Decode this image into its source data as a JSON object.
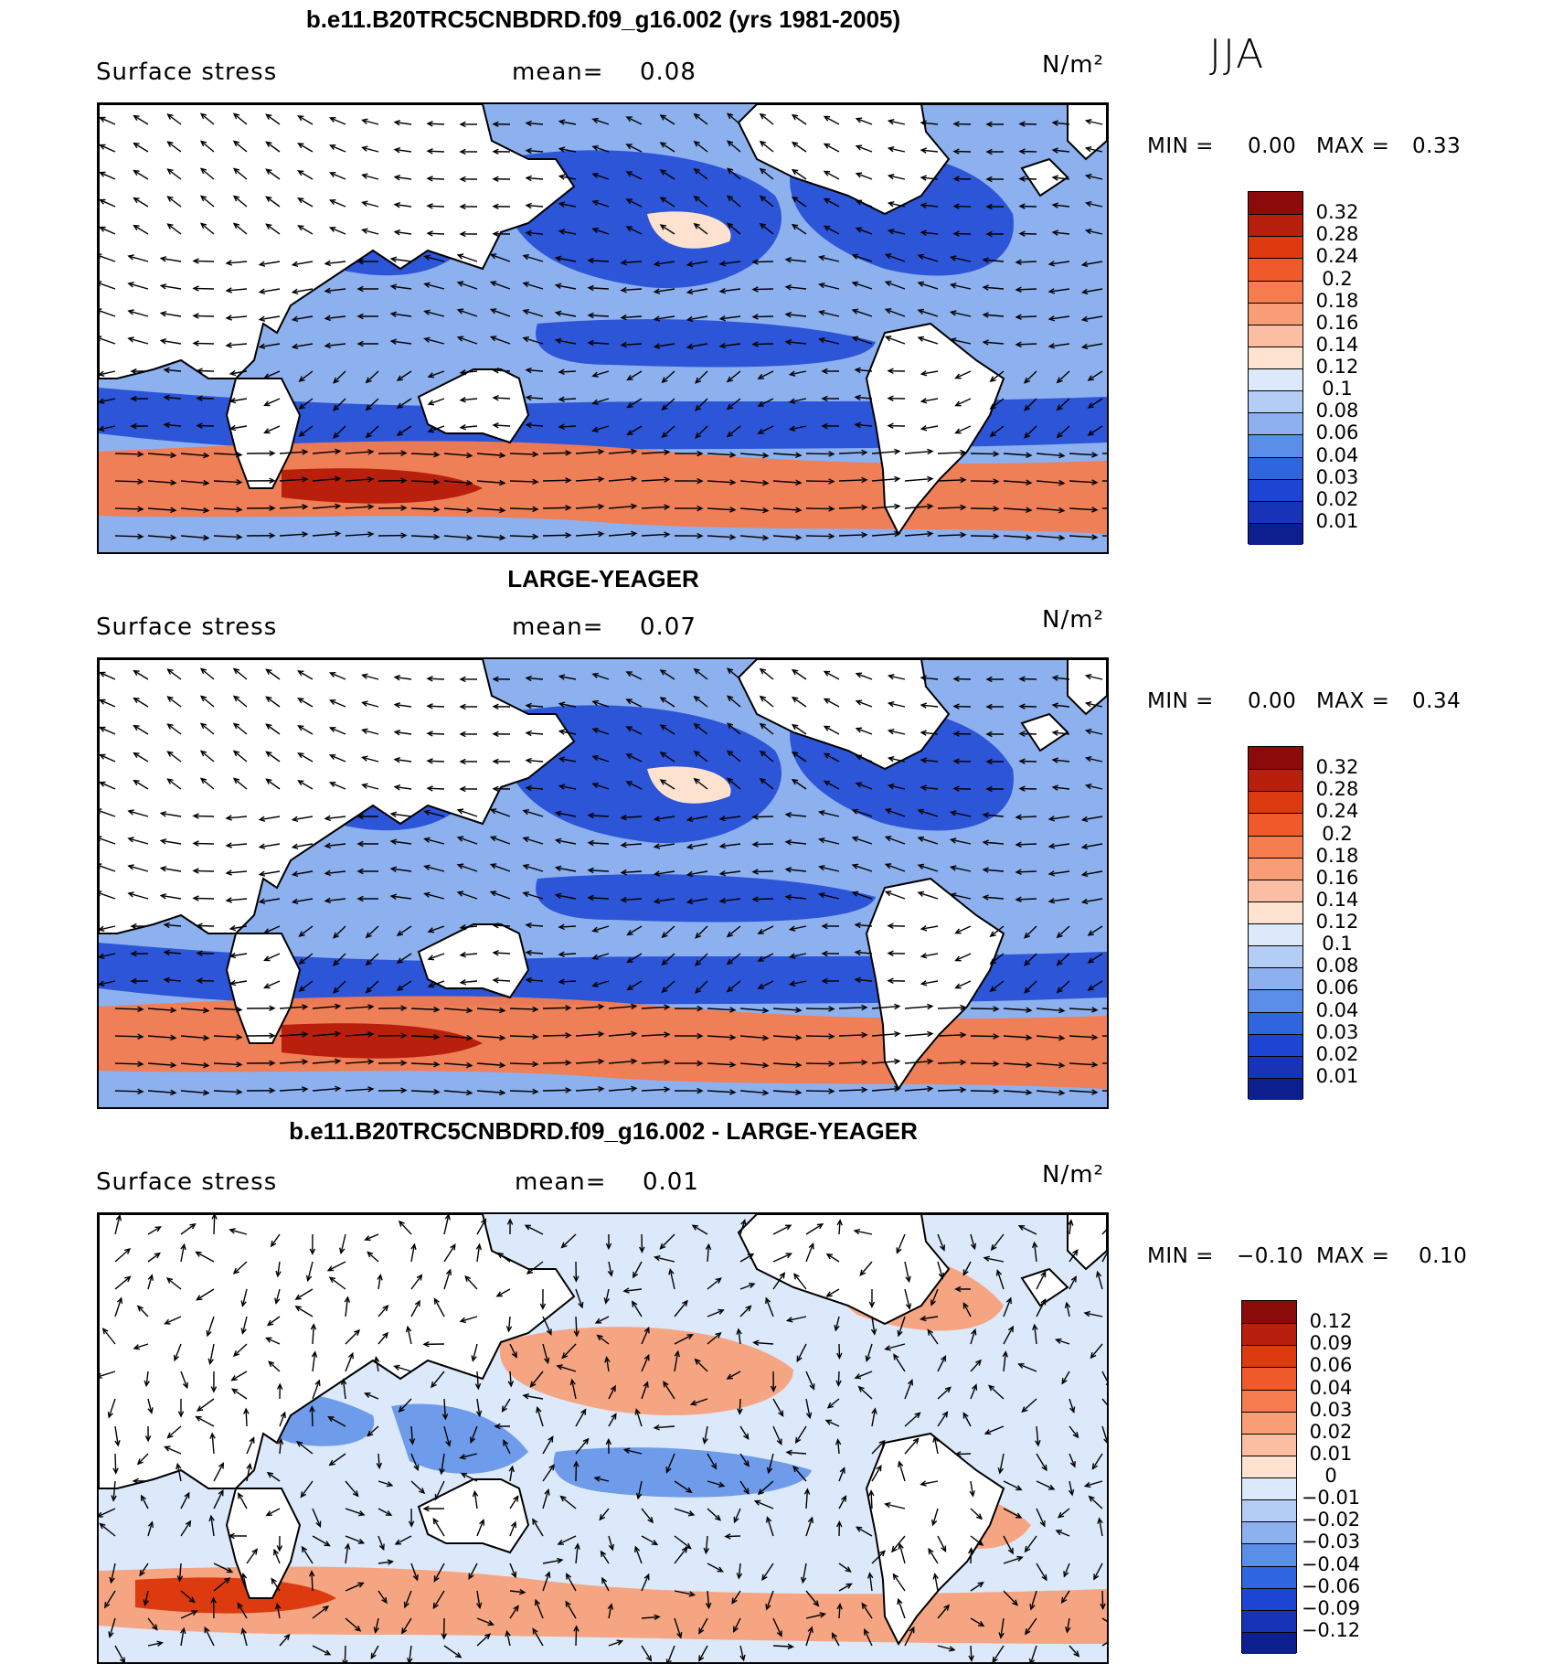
{
  "season": "JJA",
  "panels": [
    {
      "title": "b.e11.B20TRC5CNBDRD.f09_g16.002 (yrs 1981-2005)",
      "variable": "Surface stress",
      "mean_label": "mean=",
      "mean_value": "0.08",
      "units": "N/m²",
      "min_label": "MIN =",
      "min_value": "0.00",
      "max_label": "MAX =",
      "max_value": "0.33",
      "colorbar": {
        "labels": [
          "0.32",
          "0.28",
          "0.24",
          "0.2",
          "0.18",
          "0.16",
          "0.14",
          "0.12",
          "0.1",
          "0.08",
          "0.06",
          "0.04",
          "0.03",
          "0.02",
          "0.01"
        ],
        "colors": [
          "#8b0a0a",
          "#b81f0c",
          "#dd3a0f",
          "#f05a2a",
          "#f47c4e",
          "#f89d76",
          "#fbbea3",
          "#fde2d0",
          "#dce9fa",
          "#b4cdf5",
          "#8db1ef",
          "#5a8ee8",
          "#2f66e0",
          "#1c45d4",
          "#1733b8",
          "#0d1f8f"
        ]
      }
    },
    {
      "title": "LARGE-YEAGER",
      "variable": "Surface stress",
      "mean_label": "mean=",
      "mean_value": "0.07",
      "units": "N/m²",
      "min_label": "MIN =",
      "min_value": "0.00",
      "max_label": "MAX =",
      "max_value": "0.34",
      "colorbar": {
        "labels": [
          "0.32",
          "0.28",
          "0.24",
          "0.2",
          "0.18",
          "0.16",
          "0.14",
          "0.12",
          "0.1",
          "0.08",
          "0.06",
          "0.04",
          "0.03",
          "0.02",
          "0.01"
        ],
        "colors": [
          "#8b0a0a",
          "#b81f0c",
          "#dd3a0f",
          "#f05a2a",
          "#f47c4e",
          "#f89d76",
          "#fbbea3",
          "#fde2d0",
          "#dce9fa",
          "#b4cdf5",
          "#8db1ef",
          "#5a8ee8",
          "#2f66e0",
          "#1c45d4",
          "#1733b8",
          "#0d1f8f"
        ]
      }
    },
    {
      "title": "b.e11.B20TRC5CNBDRD.f09_g16.002 - LARGE-YEAGER",
      "variable": "Surface stress",
      "mean_label": "mean=",
      "mean_value": "0.01",
      "units": "N/m²",
      "min_label": "MIN =",
      "min_value": "−0.10",
      "max_label": "MAX =",
      "max_value": "0.10",
      "colorbar": {
        "labels": [
          "0.12",
          "0.09",
          "0.06",
          "0.04",
          "0.03",
          "0.02",
          "0.01",
          "0",
          "−0.01",
          "−0.02",
          "−0.03",
          "−0.04",
          "−0.06",
          "−0.09",
          "−0.12"
        ],
        "colors": [
          "#8b0a0a",
          "#b81f0c",
          "#dd3a0f",
          "#f05a2a",
          "#f47c4e",
          "#f89d76",
          "#fbbea3",
          "#fde2d0",
          "#dce9fa",
          "#b4cdf5",
          "#8db1ef",
          "#5a8ee8",
          "#2f66e0",
          "#1c45d4",
          "#1733b8",
          "#0d1f8f"
        ]
      }
    }
  ]
}
